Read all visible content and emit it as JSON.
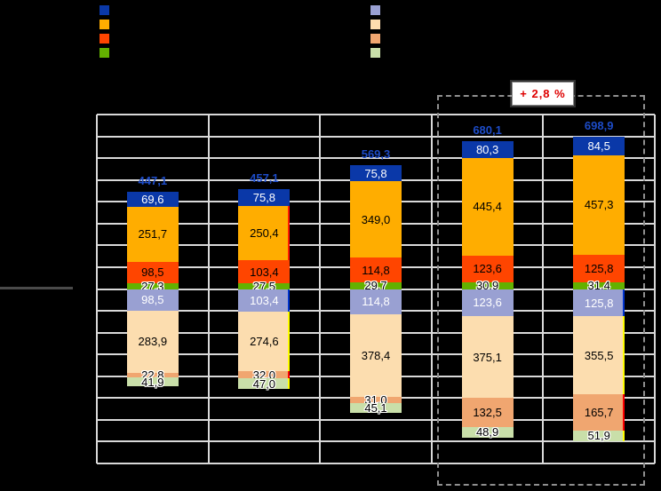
{
  "callout": {
    "label": "+ 2,8 %"
  },
  "legend": {
    "group1": [
      {
        "name": "dark-blue",
        "color": "#0A38A8"
      },
      {
        "name": "orange",
        "color": "#FFAD00"
      },
      {
        "name": "orange-red",
        "color": "#FF4500"
      },
      {
        "name": "green",
        "color": "#63B100"
      }
    ],
    "group2": [
      {
        "name": "light-purple",
        "color": "#99A0D2"
      },
      {
        "name": "light-peach",
        "color": "#FCDDAF"
      },
      {
        "name": "salmon",
        "color": "#F0A670"
      },
      {
        "name": "light-green",
        "color": "#C9DFA9"
      }
    ]
  },
  "chart_data": {
    "type": "bar",
    "stacked": true,
    "orientation": "diverging-vertical",
    "categories": [
      "",
      "",
      "",
      "",
      ""
    ],
    "totals": [
      "447,1",
      "457,1",
      "569,3",
      "680,1",
      "698,9"
    ],
    "total_label_color": "#1D4CC8",
    "series_upper": [
      {
        "name": "dark-blue",
        "color": "#0A38A8",
        "text_color": "#FFFFFF",
        "values": [
          69.6,
          75.8,
          75.8,
          80.3,
          84.5
        ]
      },
      {
        "name": "orange",
        "color": "#FFAD00",
        "text_color": "#000000",
        "values": [
          251.7,
          250.4,
          349.0,
          445.4,
          457.3
        ]
      },
      {
        "name": "orange-red",
        "color": "#FF4500",
        "text_color": "#000000",
        "values": [
          98.5,
          103.4,
          114.8,
          123.6,
          125.8
        ]
      },
      {
        "name": "green",
        "color": "#63B100",
        "text_color": "#000000",
        "values": [
          27.3,
          27.5,
          29.7,
          30.9,
          31.4
        ]
      }
    ],
    "series_lower": [
      {
        "name": "light-purple",
        "color": "#99A0D2",
        "text_color": "#FFFFFF",
        "values": [
          98.5,
          103.4,
          114.8,
          123.6,
          125.8
        ]
      },
      {
        "name": "light-peach",
        "color": "#FCDDAF",
        "text_color": "#000000",
        "values": [
          283.9,
          274.6,
          378.4,
          375.1,
          355.5
        ]
      },
      {
        "name": "salmon",
        "color": "#F0A670",
        "text_color": "#000000",
        "values": [
          22.8,
          32.0,
          31.0,
          132.5,
          165.7
        ]
      },
      {
        "name": "light-green",
        "color": "#C9DFA9",
        "text_color": "#000000",
        "values": [
          41.9,
          47.0,
          45.1,
          48.9,
          51.9
        ]
      }
    ],
    "decimal_separator": "comma",
    "annotation": {
      "text": "+ 2,8 %",
      "highlighted_category_indices": [
        3,
        4
      ]
    },
    "ylim": [
      -800,
      800
    ],
    "grid_interval": 100,
    "grid": true,
    "legend_position": "top"
  }
}
